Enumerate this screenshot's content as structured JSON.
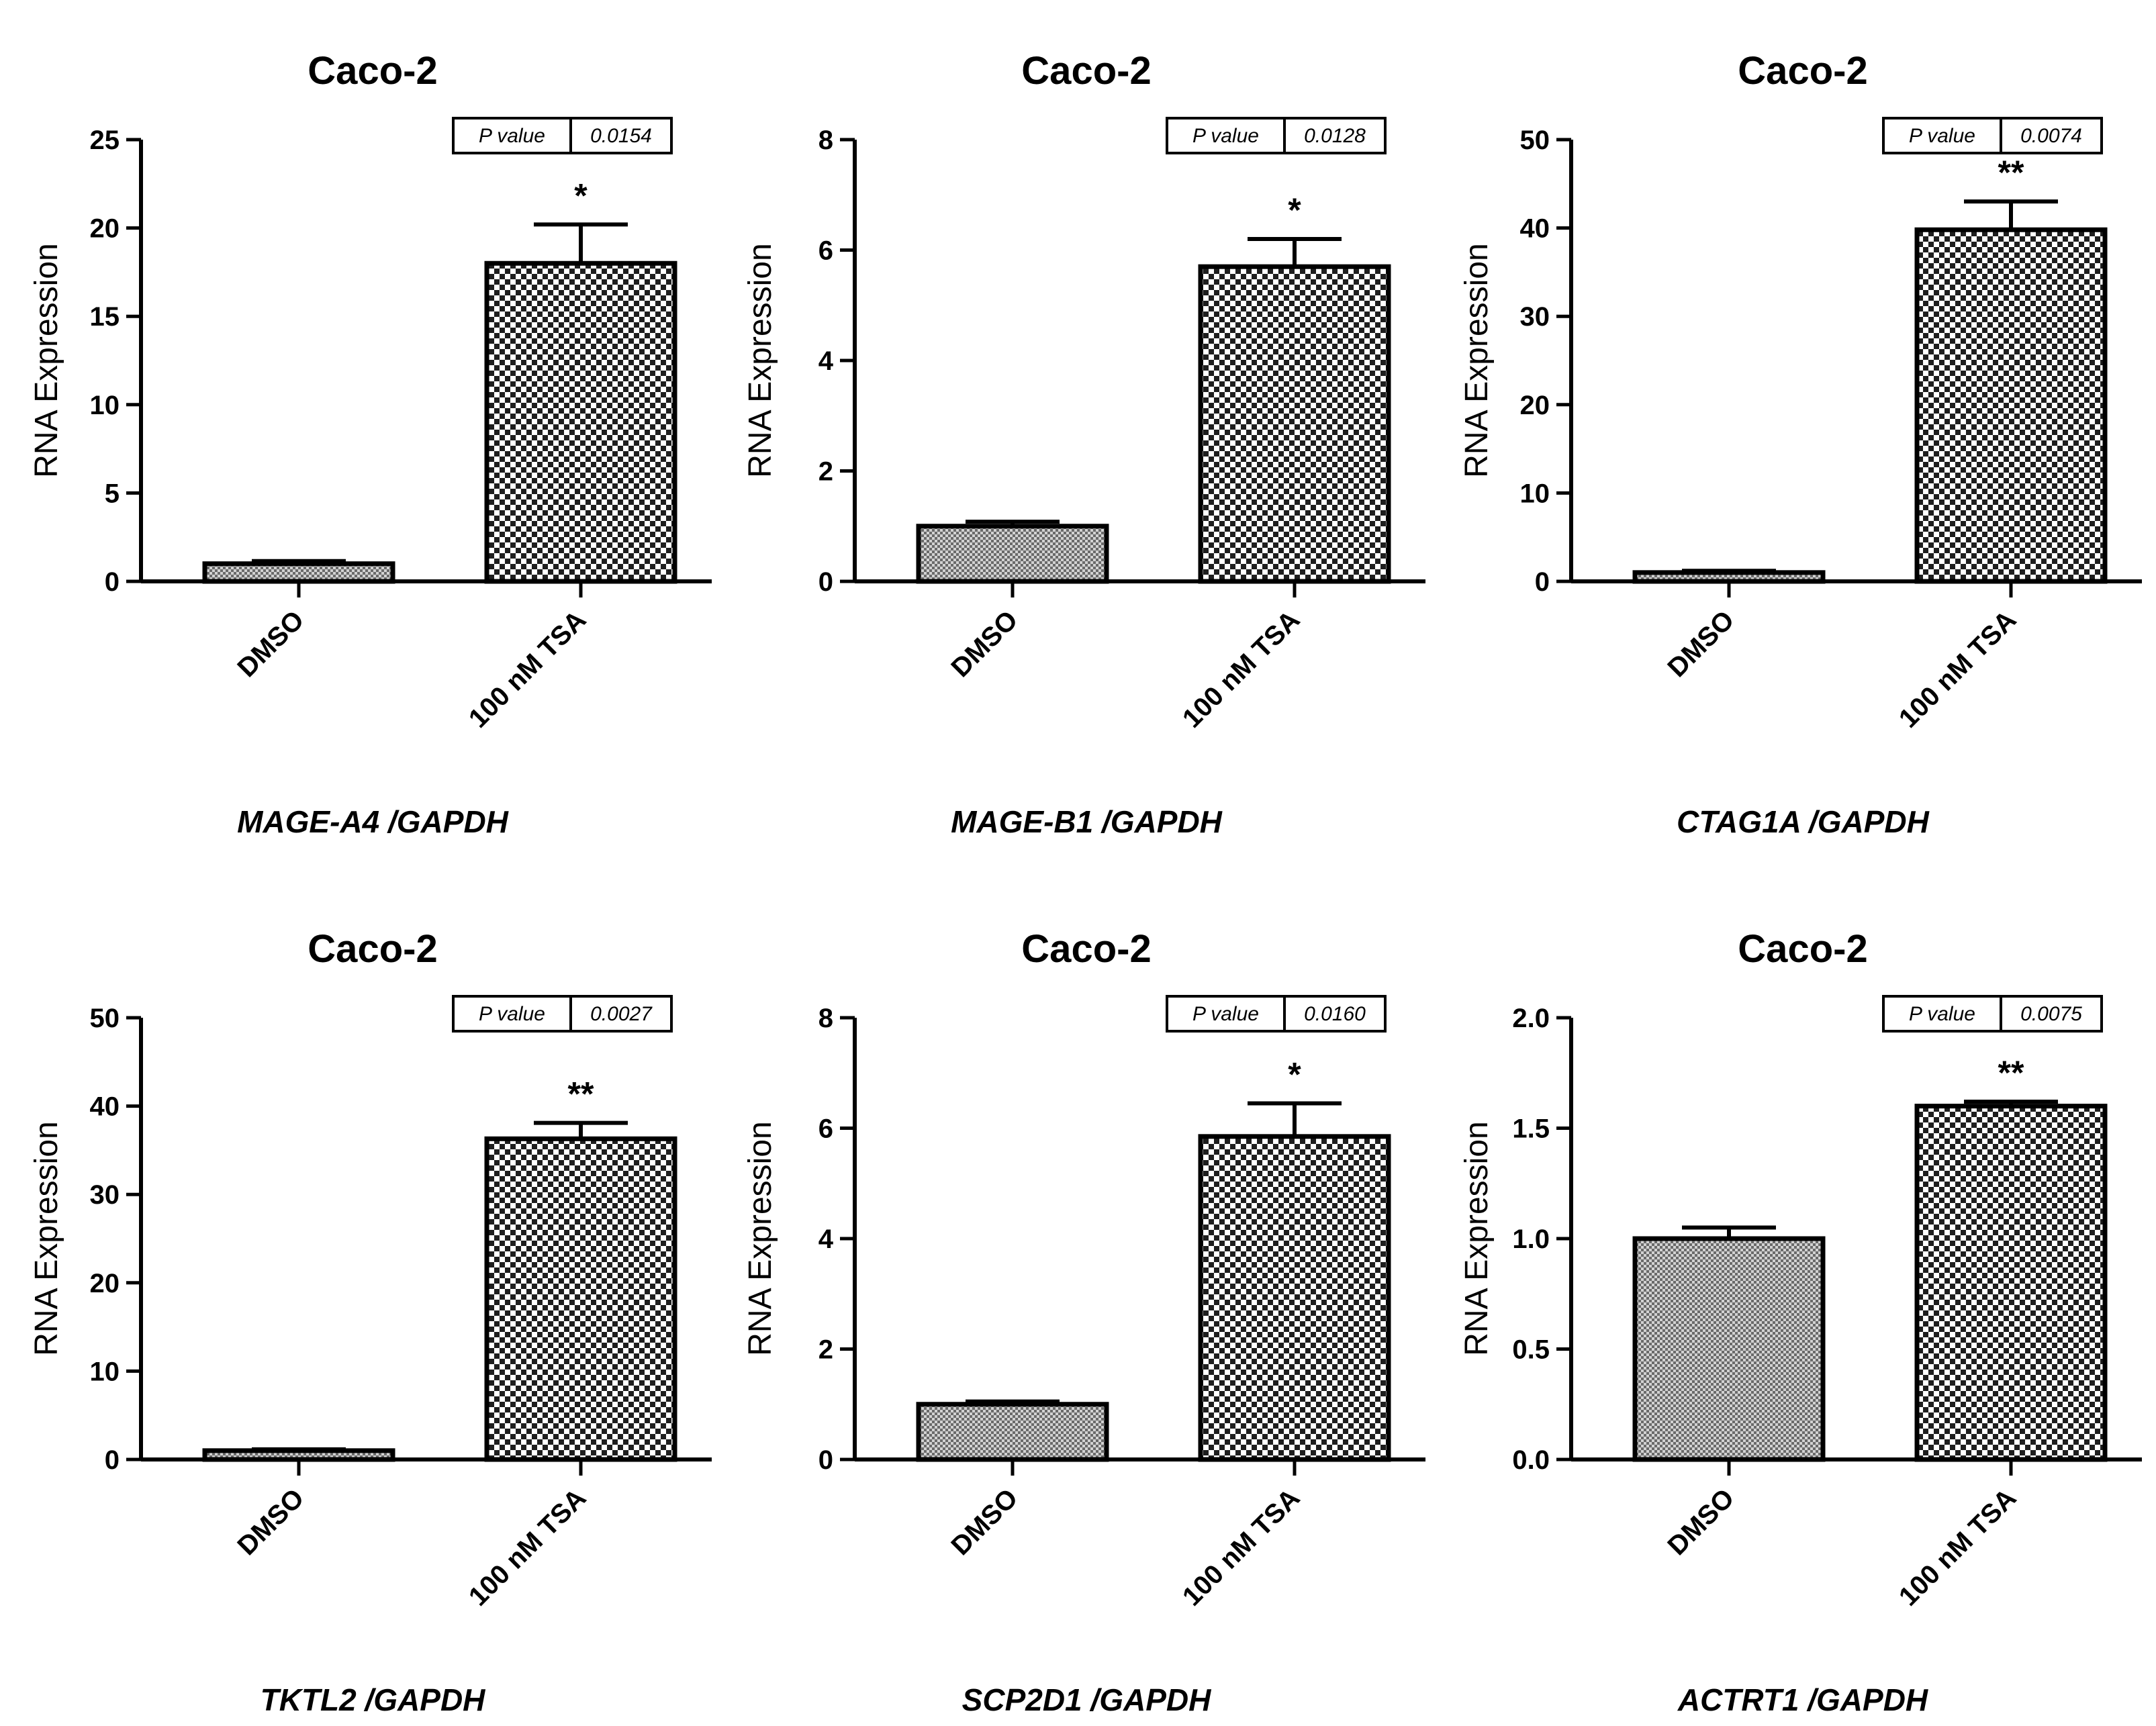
{
  "colors": {
    "bar_fill_control": "#9a9a9a",
    "bar_fill_treated": "#3a3a3a",
    "axis": "#000000",
    "background": "#ffffff"
  },
  "chart_data": [
    {
      "type": "bar",
      "title": "Caco-2",
      "ylabel": "RNA Expression",
      "caption": "MAGE-A4 /GAPDH",
      "categories": [
        "DMSO",
        "100 nM TSA"
      ],
      "values": [
        1.0,
        18.0
      ],
      "errors": [
        0.15,
        2.2
      ],
      "ylim": [
        0,
        25
      ],
      "yticks": [
        "0",
        "5",
        "10",
        "15",
        "20",
        "25"
      ],
      "ytick_values": [
        0,
        5,
        10,
        15,
        20,
        25
      ],
      "pvalue_label": "P value",
      "pvalue": "0.0154",
      "significance": "*"
    },
    {
      "type": "bar",
      "title": "Caco-2",
      "ylabel": "RNA Expression",
      "caption": "MAGE-B1 /GAPDH",
      "categories": [
        "DMSO",
        "100 nM TSA"
      ],
      "values": [
        1.0,
        5.7
      ],
      "errors": [
        0.08,
        0.5
      ],
      "ylim": [
        0,
        8
      ],
      "yticks": [
        "0",
        "2",
        "4",
        "6",
        "8"
      ],
      "ytick_values": [
        0,
        2,
        4,
        6,
        8
      ],
      "pvalue_label": "P value",
      "pvalue": "0.0128",
      "significance": "*"
    },
    {
      "type": "bar",
      "title": "Caco-2",
      "ylabel": "RNA Expression",
      "caption": "CTAG1A /GAPDH",
      "categories": [
        "DMSO",
        "100 nM TSA"
      ],
      "values": [
        1.0,
        39.8
      ],
      "errors": [
        0.2,
        3.2
      ],
      "ylim": [
        0,
        50
      ],
      "yticks": [
        "0",
        "10",
        "20",
        "30",
        "40",
        "50"
      ],
      "ytick_values": [
        0,
        10,
        20,
        30,
        40,
        50
      ],
      "pvalue_label": "P value",
      "pvalue": "0.0074",
      "significance": "**"
    },
    {
      "type": "bar",
      "title": "Caco-2",
      "ylabel": "RNA Expression",
      "caption": "TKTL2 /GAPDH",
      "categories": [
        "DMSO",
        "100 nM TSA"
      ],
      "values": [
        1.0,
        36.3
      ],
      "errors": [
        0.15,
        1.8
      ],
      "ylim": [
        0,
        50
      ],
      "yticks": [
        "0",
        "10",
        "20",
        "30",
        "40",
        "50"
      ],
      "ytick_values": [
        0,
        10,
        20,
        30,
        40,
        50
      ],
      "pvalue_label": "P value",
      "pvalue": "0.0027",
      "significance": "**"
    },
    {
      "type": "bar",
      "title": "Caco-2",
      "ylabel": "RNA Expression",
      "caption": "SCP2D1 /GAPDH",
      "categories": [
        "DMSO",
        "100 nM TSA"
      ],
      "values": [
        1.0,
        5.85
      ],
      "errors": [
        0.05,
        0.6
      ],
      "ylim": [
        0,
        8
      ],
      "yticks": [
        "0",
        "2",
        "4",
        "6",
        "8"
      ],
      "ytick_values": [
        0,
        2,
        4,
        6,
        8
      ],
      "pvalue_label": "P value",
      "pvalue": "0.0160",
      "significance": "*"
    },
    {
      "type": "bar",
      "title": "Caco-2",
      "ylabel": "RNA Expression",
      "caption": "ACTRT1 /GAPDH",
      "categories": [
        "DMSO",
        "100 nM TSA"
      ],
      "values": [
        1.0,
        1.6
      ],
      "errors": [
        0.05,
        0.02
      ],
      "ylim": [
        0,
        2
      ],
      "yticks": [
        "0.0",
        "0.5",
        "1.0",
        "1.5",
        "2.0"
      ],
      "ytick_values": [
        0,
        0.5,
        1.0,
        1.5,
        2.0
      ],
      "pvalue_label": "P value",
      "pvalue": "0.0075",
      "significance": "**"
    }
  ]
}
